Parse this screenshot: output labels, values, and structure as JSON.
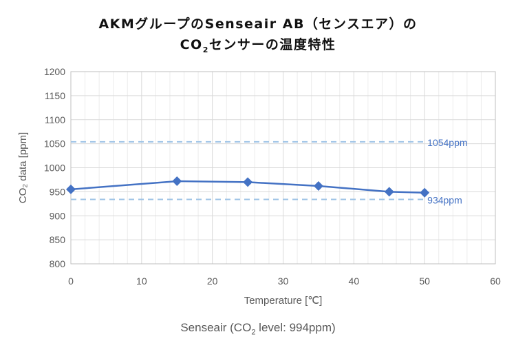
{
  "title": {
    "line1": "AKMグループのSenseair AB（センスエア）の",
    "line2_a": "CO",
    "line2_sub": "2",
    "line2_b": "センサーの温度特性"
  },
  "caption": {
    "a": "Senseair (CO",
    "sub": "2",
    "b": " level: 994ppm)"
  },
  "chart_data": {
    "type": "line",
    "xlabel": "Temperature [℃]",
    "ylabel": "CO₂ data [ppm]",
    "xlim": [
      0,
      60
    ],
    "ylim": [
      800,
      1200
    ],
    "xticks": [
      0,
      10,
      20,
      30,
      40,
      50,
      60
    ],
    "yticks": [
      800,
      850,
      900,
      950,
      1000,
      1050,
      1100,
      1150,
      1200
    ],
    "grid": true,
    "series": [
      {
        "name": "Senseair",
        "x": [
          0,
          15,
          25,
          35,
          45,
          50
        ],
        "y": [
          955,
          972,
          970,
          962,
          950,
          948
        ],
        "color": "#4472C4",
        "marker": "diamond"
      }
    ],
    "reference_lines": [
      {
        "y": 1054,
        "label": "1054ppm",
        "color": "#9DC3E6"
      },
      {
        "y": 934,
        "label": "934ppm",
        "color": "#9DC3E6"
      }
    ]
  }
}
